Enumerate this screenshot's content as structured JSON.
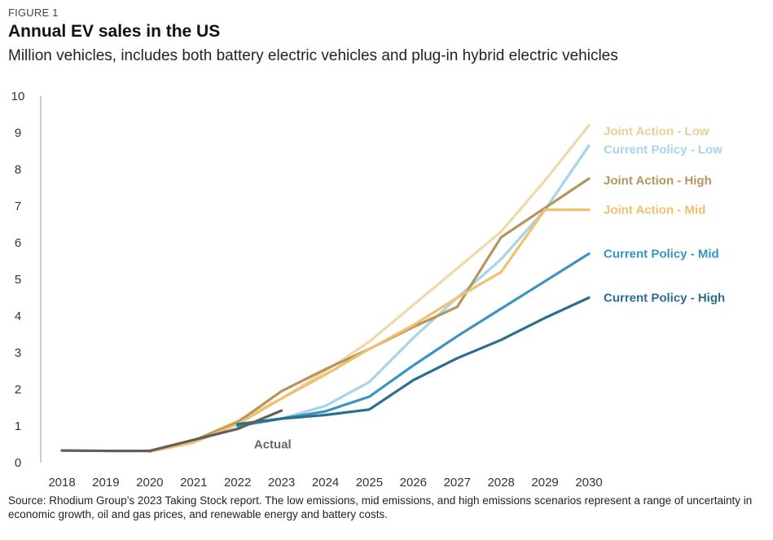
{
  "figure_label": "FIGURE 1",
  "source_note": "Source: Rhodium Group’s 2023 Taking Stock report. The low emissions, mid emissions, and high emissions scenarios represent a range of uncertainty in economic growth, oil and gas prices, and renewable energy and battery costs.",
  "chart_data": {
    "type": "line",
    "title": "Annual EV sales in the US",
    "subtitle": "Million vehicles, includes both battery electric vehicles and plug-in hybrid electric vehicles",
    "xlabel": "",
    "ylabel": "",
    "ylim": [
      0,
      10
    ],
    "y_ticks": [
      0,
      1,
      2,
      3,
      4,
      5,
      6,
      7,
      8,
      9,
      10
    ],
    "x": [
      2018,
      2019,
      2020,
      2021,
      2022,
      2023,
      2024,
      2025,
      2026,
      2027,
      2028,
      2029,
      2030
    ],
    "grid": false,
    "legend": "direct labels at line ends (right)",
    "annotations": [
      {
        "text": "Actual",
        "x": 2022.8,
        "y": 0.5
      }
    ],
    "series": [
      {
        "name": "Joint Action - Low",
        "color": "#f0d9a8",
        "values": [
          null,
          null,
          0.3,
          0.6,
          1.15,
          1.75,
          2.5,
          3.3,
          4.3,
          5.3,
          6.3,
          7.7,
          9.2
        ]
      },
      {
        "name": "Current Policy - Low",
        "color": "#a9d3e8",
        "values": [
          null,
          null,
          null,
          null,
          1.0,
          1.2,
          1.55,
          2.2,
          3.4,
          4.5,
          5.55,
          6.9,
          8.65
        ]
      },
      {
        "name": "Joint Action - High",
        "color": "#b5955e",
        "values": [
          null,
          null,
          0.3,
          0.6,
          1.1,
          1.95,
          2.55,
          3.1,
          3.7,
          4.25,
          6.15,
          6.95,
          7.75
        ]
      },
      {
        "name": "Joint Action - Mid",
        "color": "#f0c06e",
        "values": [
          null,
          null,
          0.3,
          0.55,
          1.05,
          1.75,
          2.4,
          3.1,
          3.75,
          4.5,
          5.2,
          6.9,
          6.9
        ]
      },
      {
        "name": "Current Policy - Mid",
        "color": "#3994c1",
        "values": [
          null,
          null,
          null,
          null,
          1.0,
          1.2,
          1.4,
          1.8,
          2.65,
          3.45,
          4.2,
          4.95,
          5.7
        ]
      },
      {
        "name": "Current Policy - High",
        "color": "#2b6f8e",
        "values": [
          null,
          null,
          null,
          null,
          1.05,
          1.2,
          1.3,
          1.45,
          2.25,
          2.85,
          3.35,
          3.95,
          4.5
        ]
      },
      {
        "name": "Actual",
        "color": "#5f5f5f",
        "values": [
          0.33,
          0.32,
          0.32,
          0.62,
          0.92,
          1.42,
          null,
          null,
          null,
          null,
          null,
          null,
          null
        ]
      }
    ]
  }
}
